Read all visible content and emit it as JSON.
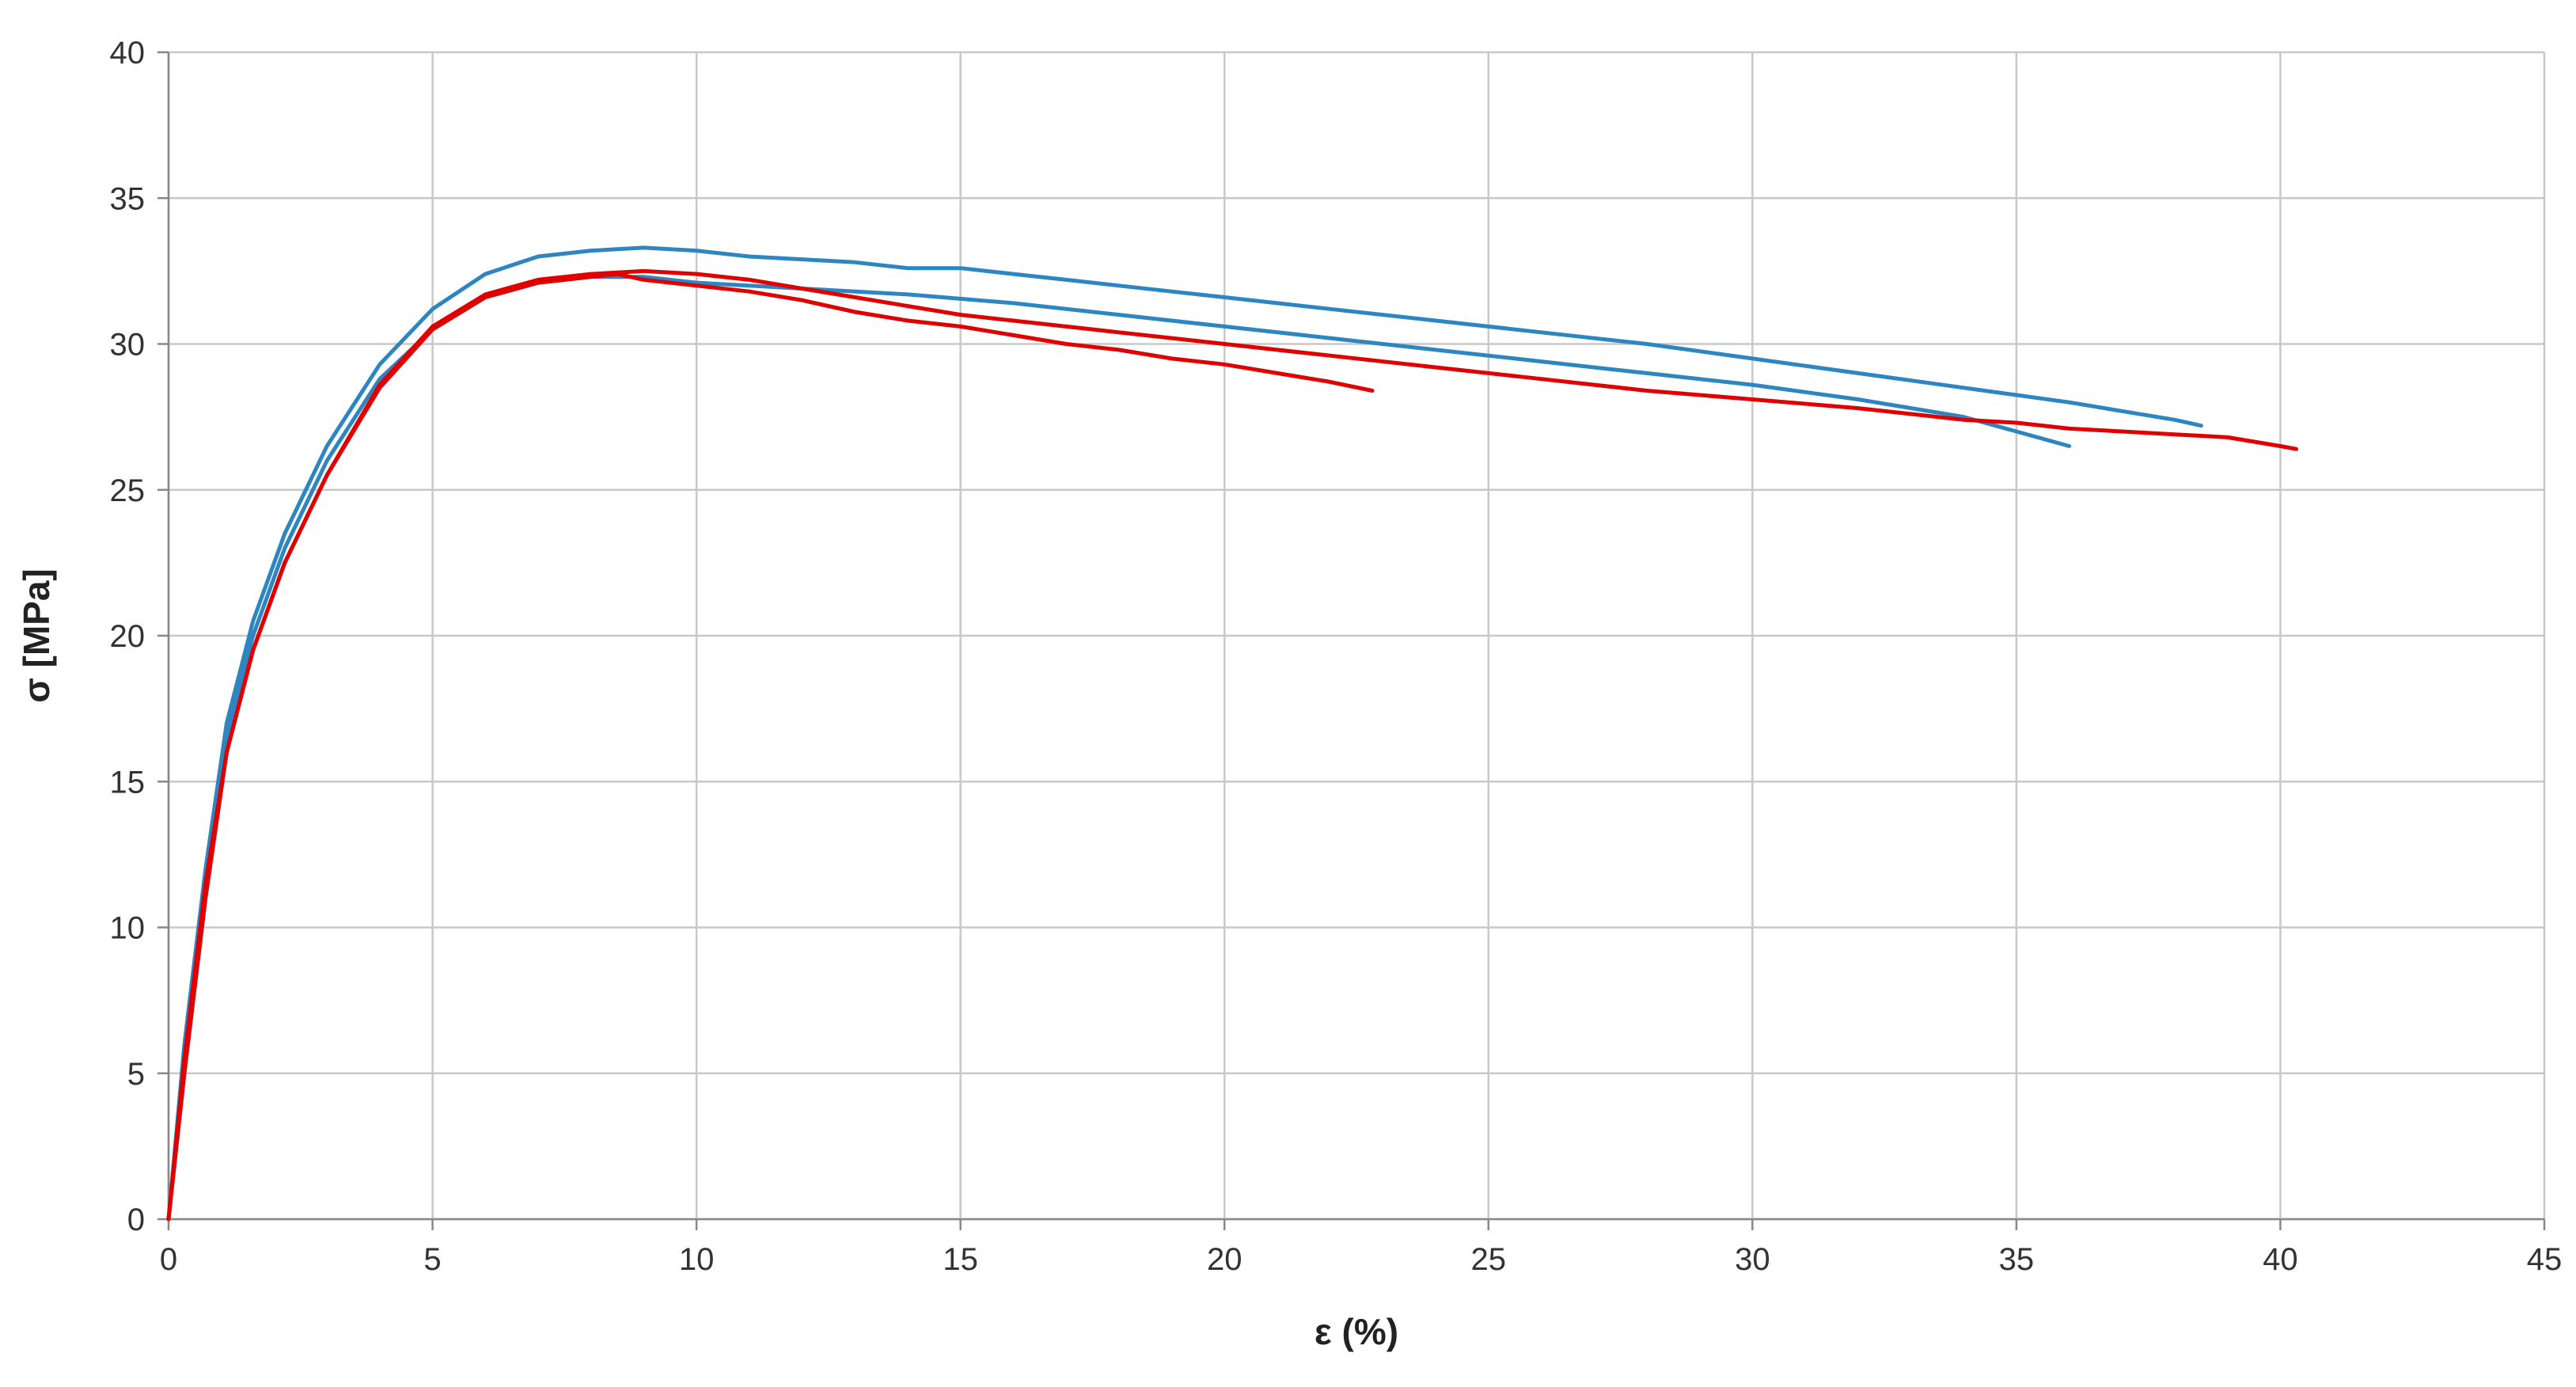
{
  "chart_data": {
    "type": "line",
    "title": "",
    "xlabel": "ε (%)",
    "ylabel": "σ [MPa]",
    "xlim": [
      0,
      45
    ],
    "ylim": [
      0,
      40
    ],
    "x_ticks": [
      0,
      5,
      10,
      15,
      20,
      25,
      30,
      35,
      40,
      45
    ],
    "y_ticks": [
      0,
      5,
      10,
      15,
      20,
      25,
      30,
      35,
      40
    ],
    "grid": true,
    "legend": "none",
    "series": [
      {
        "color": "#2e86c1",
        "x": [
          0,
          0.3,
          0.7,
          1.1,
          1.6,
          2.2,
          3,
          4,
          5,
          6,
          7,
          8,
          9,
          10,
          11,
          12,
          13,
          14,
          15,
          16,
          17,
          18,
          19,
          20,
          22,
          24,
          26,
          28,
          30,
          32,
          34,
          36,
          37,
          38,
          38.5
        ],
        "y": [
          0,
          6,
          12,
          17,
          20.5,
          23.5,
          26.5,
          29.3,
          31.2,
          32.4,
          33.0,
          33.2,
          33.3,
          33.2,
          33.0,
          32.9,
          32.8,
          32.6,
          32.6,
          32.4,
          32.2,
          32.0,
          31.8,
          31.6,
          31.2,
          30.8,
          30.4,
          30.0,
          29.5,
          29.0,
          28.5,
          28.0,
          27.7,
          27.4,
          27.2
        ]
      },
      {
        "color": "#2e86c1",
        "x": [
          0,
          0.3,
          0.7,
          1.1,
          1.6,
          2.2,
          3,
          4,
          5,
          6,
          7,
          8,
          9,
          10,
          12,
          14,
          16,
          18,
          20,
          22,
          24,
          26,
          28,
          30,
          32,
          34,
          35,
          36
        ],
        "y": [
          0,
          5.5,
          11.5,
          16.5,
          20,
          23,
          26,
          28.8,
          30.5,
          31.6,
          32.1,
          32.3,
          32.3,
          32.1,
          31.9,
          31.7,
          31.4,
          31.0,
          30.6,
          30.2,
          29.8,
          29.4,
          29.0,
          28.6,
          28.1,
          27.5,
          27.0,
          26.5
        ]
      },
      {
        "color": "#e00000",
        "x": [
          0,
          0.3,
          0.7,
          1.1,
          1.6,
          2.2,
          3,
          4,
          5,
          6,
          7,
          8,
          8.5,
          9,
          10,
          11,
          12,
          13,
          14,
          15,
          16,
          17,
          18,
          19,
          20,
          21,
          22,
          22.8
        ],
        "y": [
          0,
          5.5,
          11.5,
          16,
          19.5,
          22.5,
          25.5,
          28.5,
          30.5,
          31.6,
          32.1,
          32.3,
          32.4,
          32.2,
          32.0,
          31.8,
          31.5,
          31.1,
          30.8,
          30.6,
          30.3,
          30.0,
          29.8,
          29.5,
          29.3,
          29.0,
          28.7,
          28.4
        ]
      },
      {
        "color": "#e00000",
        "x": [
          0,
          0.3,
          0.7,
          1.1,
          1.6,
          2.2,
          3,
          4,
          5,
          6,
          7,
          8,
          9,
          10,
          11,
          12,
          13,
          14,
          15,
          16,
          17,
          18,
          19,
          20,
          22,
          24,
          26,
          28,
          30,
          32,
          33,
          34,
          35,
          36,
          37,
          38,
          39,
          40,
          40.3
        ],
        "y": [
          0,
          5,
          11,
          16,
          19.5,
          22.5,
          25.5,
          28.6,
          30.6,
          31.7,
          32.2,
          32.4,
          32.5,
          32.4,
          32.2,
          31.9,
          31.6,
          31.3,
          31.0,
          30.8,
          30.6,
          30.4,
          30.2,
          30.0,
          29.6,
          29.2,
          28.8,
          28.4,
          28.1,
          27.8,
          27.6,
          27.4,
          27.3,
          27.1,
          27.0,
          26.9,
          26.8,
          26.5,
          26.4
        ]
      }
    ]
  }
}
